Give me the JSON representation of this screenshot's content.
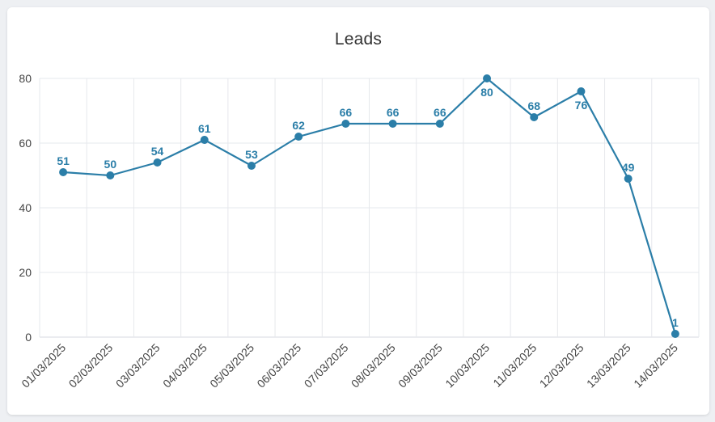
{
  "chart_data": {
    "type": "line",
    "title": "Leads",
    "xlabel": "",
    "ylabel": "",
    "categories": [
      "01/03/2025",
      "02/03/2025",
      "03/03/2025",
      "04/03/2025",
      "05/03/2025",
      "06/03/2025",
      "07/03/2025",
      "08/03/2025",
      "09/03/2025",
      "10/03/2025",
      "11/03/2025",
      "12/03/2025",
      "13/03/2025",
      "14/03/2025"
    ],
    "values": [
      51,
      50,
      54,
      61,
      53,
      62,
      66,
      66,
      66,
      80,
      68,
      76,
      49,
      1
    ],
    "data_labels": [
      "51",
      "50",
      "54",
      "61",
      "53",
      "62",
      "66",
      "66",
      "66",
      "80",
      "68",
      "76",
      "49",
      "1"
    ],
    "y_ticks": [
      "0",
      "20",
      "40",
      "60",
      "80"
    ],
    "ylim": [
      0,
      80
    ],
    "grid": true,
    "legend": "none",
    "color": "#2b7ea8"
  }
}
